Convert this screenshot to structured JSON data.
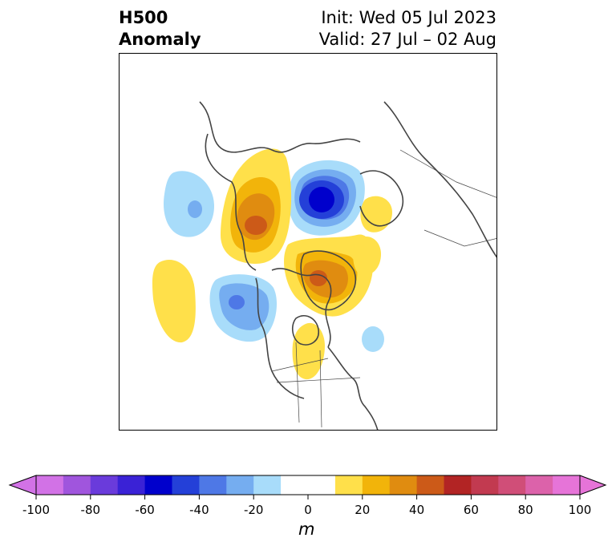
{
  "header": {
    "left_line1": "H500",
    "left_line2": "Anomaly",
    "right_line1": "Init: Wed 05 Jul 2023",
    "right_line2": "Valid: 27 Jul – 02 Aug"
  },
  "colorbar": {
    "ticks": [
      "-100",
      "-80",
      "-60",
      "-40",
      "-20",
      "0",
      "20",
      "40",
      "60",
      "80",
      "100"
    ],
    "colors": [
      "#d272e6",
      "#a055dd",
      "#6a3bdb",
      "#3a22d6",
      "#0000cc",
      "#2440d8",
      "#4e78e6",
      "#75adf0",
      "#a8dcfa",
      "#ffffff",
      "#ffffff",
      "#ffe04a",
      "#f2b40a",
      "#e08c10",
      "#cc5a18",
      "#b22424",
      "#c23a50",
      "#d04e78",
      "#dc62aa",
      "#e674d8"
    ],
    "unit": "m",
    "min_extend_color": "#d272e6",
    "max_extend_color": "#e674d8"
  },
  "map": {
    "anomaly_colors": {
      "neg_light": "#a8dcfa",
      "neg_mid": "#75adf0",
      "neg_strong": "#4e78e6",
      "neg_deep": "#2440d8",
      "neg_core": "#0000cc",
      "pos_light": "#ffe04a",
      "pos_mid": "#f2b40a",
      "pos_strong": "#e08c10",
      "pos_deep": "#cc5a18"
    },
    "coastline_color": "#444444"
  }
}
